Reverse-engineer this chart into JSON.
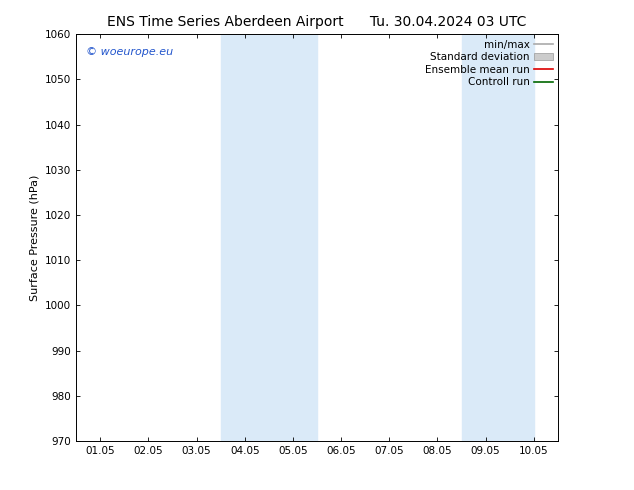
{
  "title_left": "ENS Time Series Aberdeen Airport",
  "title_right": "Tu. 30.04.2024 03 UTC",
  "ylabel": "Surface Pressure (hPa)",
  "ylim": [
    970,
    1060
  ],
  "yticks": [
    970,
    980,
    990,
    1000,
    1010,
    1020,
    1030,
    1040,
    1050,
    1060
  ],
  "xtick_labels": [
    "01.05",
    "02.05",
    "03.05",
    "04.05",
    "05.05",
    "06.05",
    "07.05",
    "08.05",
    "09.05",
    "10.05"
  ],
  "shade_bands": [
    {
      "xstart": 3.0,
      "xend": 5.0,
      "color": "#daeaf8"
    },
    {
      "xstart": 8.0,
      "xend": 9.5,
      "color": "#daeaf8"
    }
  ],
  "watermark_text": "© woeurope.eu",
  "watermark_color": "#2255cc",
  "legend_items": [
    {
      "label": "min/max",
      "color": "#aaaaaa",
      "lw": 1.2,
      "ls": "-",
      "type": "line"
    },
    {
      "label": "Standard deviation",
      "color": "#cccccc",
      "lw": 5,
      "ls": "-",
      "type": "patch"
    },
    {
      "label": "Ensemble mean run",
      "color": "#dd0000",
      "lw": 1.2,
      "ls": "-",
      "type": "line"
    },
    {
      "label": "Controll run",
      "color": "#006600",
      "lw": 1.2,
      "ls": "-",
      "type": "line"
    }
  ],
  "background_color": "#ffffff",
  "title_fontsize": 10,
  "label_fontsize": 8,
  "tick_fontsize": 7.5,
  "legend_fontsize": 7.5
}
